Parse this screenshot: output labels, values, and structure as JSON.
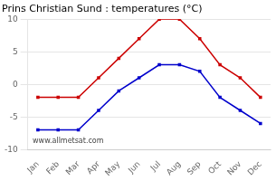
{
  "chart_data": {
    "type": "line",
    "title": "Prins Christian Sund : temperatures (°C)",
    "categories": [
      "Jan",
      "Feb",
      "Mar",
      "Apr",
      "May",
      "Jun",
      "Jul",
      "Aug",
      "Sep",
      "Oct",
      "Nov",
      "Dec"
    ],
    "series": [
      {
        "color": "#cc0000",
        "values": [
          -2,
          -2,
          -2,
          1,
          4,
          7,
          10,
          10,
          7,
          3,
          1,
          -2
        ],
        "marker": "square",
        "line_style": "solid"
      },
      {
        "color": "#0000cc",
        "values": [
          -7,
          -7,
          -7,
          -4,
          -1,
          1,
          3,
          3,
          2,
          -2,
          -4,
          -6
        ],
        "marker": "square",
        "line_style": "solid"
      }
    ],
    "ylim": [
      -10,
      10
    ],
    "yticks": [
      -10,
      -5,
      0,
      5,
      10
    ],
    "grid": true,
    "annotations": [
      "www.allmetsat.com"
    ]
  }
}
